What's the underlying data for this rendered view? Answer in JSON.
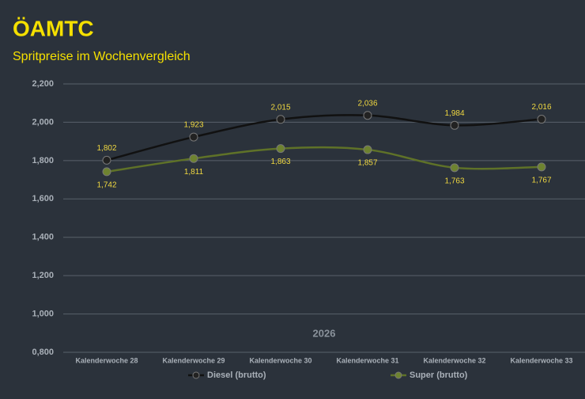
{
  "chart_data": {
    "type": "line",
    "logo": "ÖAMTC",
    "title": "Spritpreise im Wochenvergleich",
    "annotation": "2026",
    "categories": [
      "Kalenderwoche 28",
      "Kalenderwoche 29",
      "Kalenderwoche 30",
      "Kalenderwoche 31",
      "Kalenderwoche 32",
      "Kalenderwoche 33"
    ],
    "series": [
      {
        "name": "Diesel (brutto)",
        "color": "#111111",
        "marker_color": "#222222",
        "values": [
          1.802,
          1.923,
          2.015,
          2.036,
          1.984,
          2.016
        ],
        "value_labels": [
          "1,802",
          "1,923",
          "2,015",
          "2,036",
          "1,984",
          "2,016"
        ]
      },
      {
        "name": "Super (brutto)",
        "color": "#5f7228",
        "marker_color": "#6e8330",
        "values": [
          1.742,
          1.811,
          1.863,
          1.857,
          1.763,
          1.767
        ],
        "value_labels": [
          "1,742",
          "1,811",
          "1,863",
          "1,857",
          "1,763",
          "1,767"
        ]
      }
    ],
    "ylim": [
      0.8,
      2.2
    ],
    "yticks": [
      {
        "value": 0.8,
        "label": "0,800"
      },
      {
        "value": 1.0,
        "label": "1,000"
      },
      {
        "value": 1.2,
        "label": "1,200"
      },
      {
        "value": 1.4,
        "label": "1,400"
      },
      {
        "value": 1.6,
        "label": "1,600"
      },
      {
        "value": 1.8,
        "label": "1,800"
      },
      {
        "value": 2.0,
        "label": "2,000"
      },
      {
        "value": 2.2,
        "label": "2,200"
      }
    ],
    "grid": true
  }
}
